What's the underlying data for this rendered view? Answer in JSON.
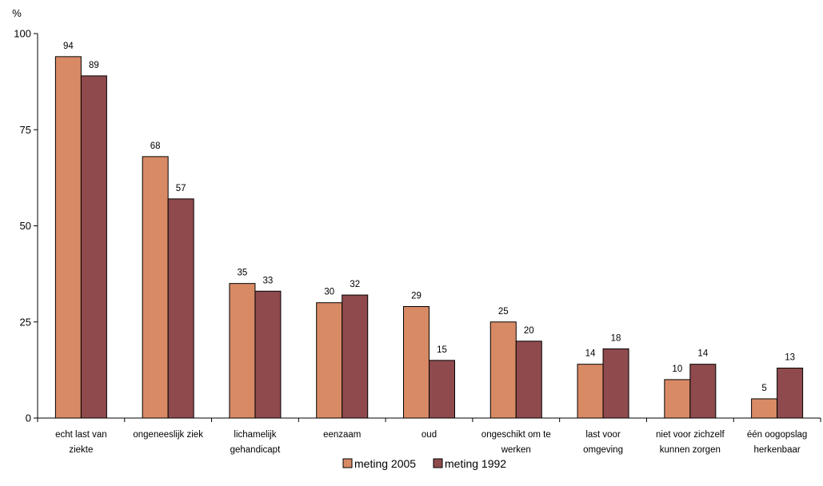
{
  "chart_data": {
    "type": "bar",
    "ylabel": "%",
    "ylim": [
      0,
      100
    ],
    "yticks": [
      0,
      25,
      50,
      75,
      100
    ],
    "grid": false,
    "legend_position": "bottom",
    "categories": [
      [
        "echt last van",
        "ziekte"
      ],
      [
        "ongeneeslijk ziek"
      ],
      [
        "lichamelijk",
        "gehandicapt"
      ],
      [
        "eenzaam"
      ],
      [
        "oud"
      ],
      [
        "ongeschikt om te",
        "werken"
      ],
      [
        "last voor",
        "omgeving"
      ],
      [
        "niet voor zichzelf",
        "kunnen zorgen"
      ],
      [
        "één oogopslag",
        "herkenbaar"
      ]
    ],
    "series": [
      {
        "name": "meting 2005",
        "color": "#D88A65",
        "values": [
          94,
          68,
          35,
          30,
          29,
          25,
          14,
          10,
          5
        ]
      },
      {
        "name": "meting 1992",
        "color": "#8F4A4D",
        "values": [
          89,
          57,
          33,
          32,
          15,
          20,
          18,
          14,
          13
        ]
      }
    ]
  }
}
